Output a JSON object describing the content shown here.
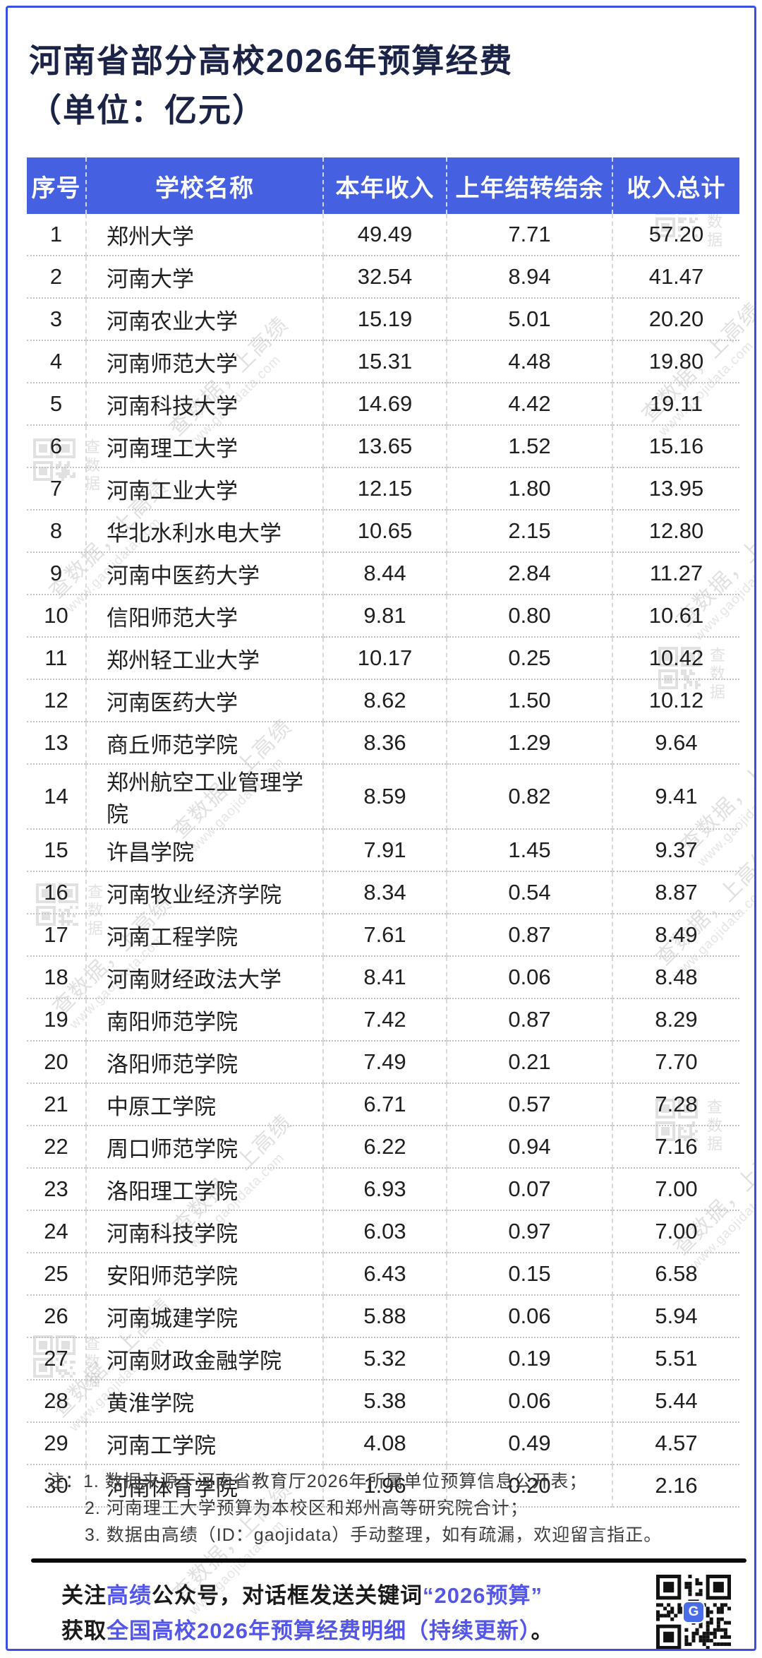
{
  "title": {
    "line1": "河南省部分高校2026年预算经费",
    "line2": "（单位：亿元）"
  },
  "table": {
    "headers": [
      "序号",
      "学校名称",
      "本年收入",
      "上年结转结余",
      "收入总计"
    ],
    "rows": [
      [
        "1",
        "郑州大学",
        "49.49",
        "7.71",
        "57.20"
      ],
      [
        "2",
        "河南大学",
        "32.54",
        "8.94",
        "41.47"
      ],
      [
        "3",
        "河南农业大学",
        "15.19",
        "5.01",
        "20.20"
      ],
      [
        "4",
        "河南师范大学",
        "15.31",
        "4.48",
        "19.80"
      ],
      [
        "5",
        "河南科技大学",
        "14.69",
        "4.42",
        "19.11"
      ],
      [
        "6",
        "河南理工大学",
        "13.65",
        "1.52",
        "15.16"
      ],
      [
        "7",
        "河南工业大学",
        "12.15",
        "1.80",
        "13.95"
      ],
      [
        "8",
        "华北水利水电大学",
        "10.65",
        "2.15",
        "12.80"
      ],
      [
        "9",
        "河南中医药大学",
        "8.44",
        "2.84",
        "11.27"
      ],
      [
        "10",
        "信阳师范大学",
        "9.81",
        "0.80",
        "10.61"
      ],
      [
        "11",
        "郑州轻工业大学",
        "10.17",
        "0.25",
        "10.42"
      ],
      [
        "12",
        "河南医药大学",
        "8.62",
        "1.50",
        "10.12"
      ],
      [
        "13",
        "商丘师范学院",
        "8.36",
        "1.29",
        "9.64"
      ],
      [
        "14",
        "郑州航空工业管理学院",
        "8.59",
        "0.82",
        "9.41"
      ],
      [
        "15",
        "许昌学院",
        "7.91",
        "1.45",
        "9.37"
      ],
      [
        "16",
        "河南牧业经济学院",
        "8.34",
        "0.54",
        "8.87"
      ],
      [
        "17",
        "河南工程学院",
        "7.61",
        "0.87",
        "8.49"
      ],
      [
        "18",
        "河南财经政法大学",
        "8.41",
        "0.06",
        "8.48"
      ],
      [
        "19",
        "南阳师范学院",
        "7.42",
        "0.87",
        "8.29"
      ],
      [
        "20",
        "洛阳师范学院",
        "7.49",
        "0.21",
        "7.70"
      ],
      [
        "21",
        "中原工学院",
        "6.71",
        "0.57",
        "7.28"
      ],
      [
        "22",
        "周口师范学院",
        "6.22",
        "0.94",
        "7.16"
      ],
      [
        "23",
        "洛阳理工学院",
        "6.93",
        "0.07",
        "7.00"
      ],
      [
        "24",
        "河南科技学院",
        "6.03",
        "0.97",
        "7.00"
      ],
      [
        "25",
        "安阳师范学院",
        "6.43",
        "0.15",
        "6.58"
      ],
      [
        "26",
        "河南城建学院",
        "5.88",
        "0.06",
        "5.94"
      ],
      [
        "27",
        "河南财政金融学院",
        "5.32",
        "0.19",
        "5.51"
      ],
      [
        "28",
        "黄淮学院",
        "5.38",
        "0.06",
        "5.44"
      ],
      [
        "29",
        "河南工学院",
        "4.08",
        "0.49",
        "4.57"
      ],
      [
        "30",
        "河南体育学院",
        "1.96",
        "0.20",
        "2.16"
      ]
    ]
  },
  "notes": {
    "label": "注：",
    "items": [
      "1. 数据来源于河南省教育厅2026年所属单位预算信息公开表；",
      "2. 河南理工大学预算为本校区和郑州高等研究院合计；",
      "3. 数据由高绩（ID：gaojidata）手动整理，如有疏漏，欢迎留言指正。"
    ]
  },
  "footer": {
    "line1": [
      {
        "text": "关注",
        "color": "dark"
      },
      {
        "text": "高绩",
        "color": "blue"
      },
      {
        "text": "公众号，对话框发送关键词",
        "color": "dark"
      },
      {
        "text": "“2026预算”",
        "color": "blue"
      }
    ],
    "line2": [
      {
        "text": "获取",
        "color": "dark"
      },
      {
        "text": "全国高校2026年预算经费明细（持续更新）",
        "color": "blue"
      },
      {
        "text": "。",
        "color": "dark"
      }
    ]
  },
  "watermark": {
    "text1": "查数据，上高绩",
    "text2": "www.gaojidata.com",
    "stamp": "查数据"
  },
  "colors": {
    "frame_border": "#3D4FE1",
    "header_bg": "#4560E0",
    "title_text": "#1B2347",
    "body_text": "#1F1F1F",
    "note_text": "#3D3D3D",
    "footer_dark": "#1A1A1A",
    "footer_blue": "#5456E9",
    "divider": "#0A0A0A",
    "watermark": "#9A9A9A"
  }
}
